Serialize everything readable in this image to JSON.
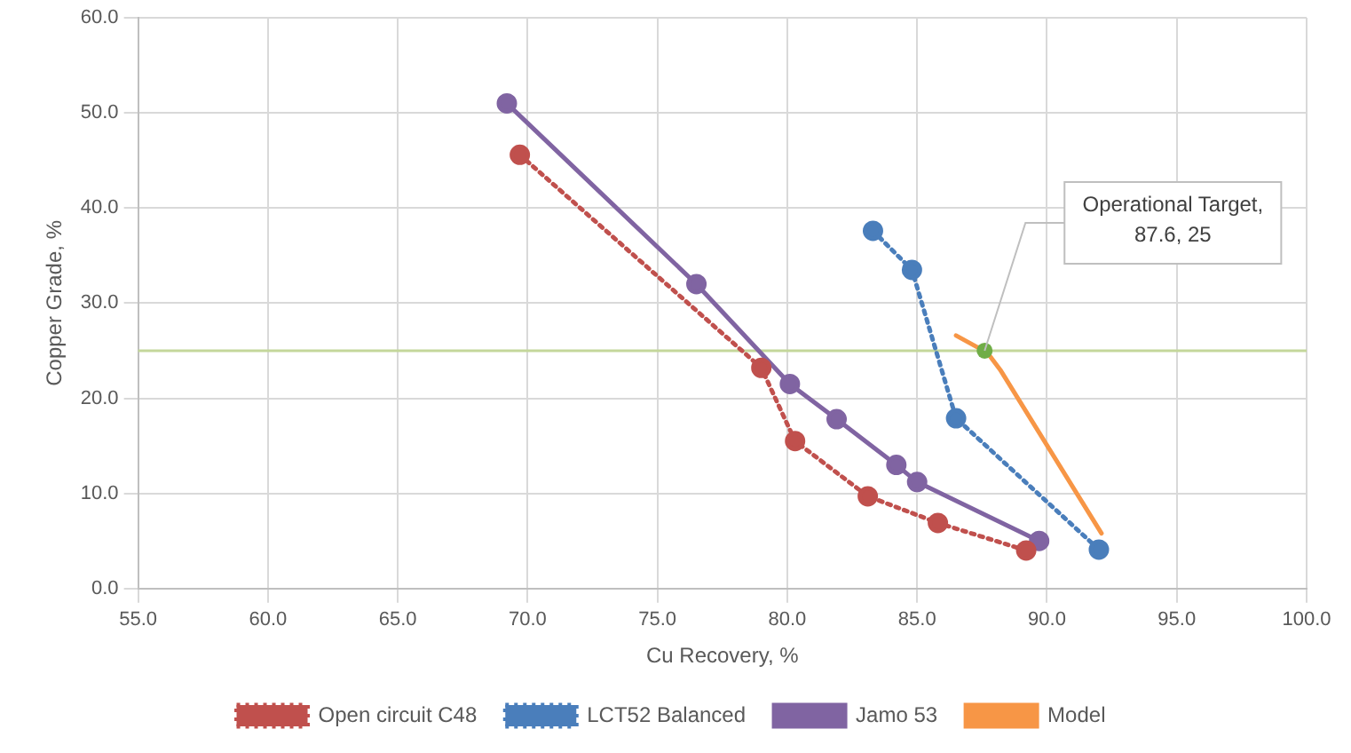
{
  "chart_data": {
    "type": "line",
    "xlabel": "Cu Recovery, %",
    "ylabel": "Copper Grade, %",
    "xlim": [
      55,
      100
    ],
    "xticks": [
      {
        "value": 55,
        "label": "55.0"
      },
      {
        "value": 60,
        "label": "60.0"
      },
      {
        "value": 65,
        "label": "65.0"
      },
      {
        "value": 70,
        "label": "70.0"
      },
      {
        "value": 75,
        "label": "75.0"
      },
      {
        "value": 80,
        "label": "80.0"
      },
      {
        "value": 85,
        "label": "85.0"
      },
      {
        "value": 90,
        "label": "90.0"
      },
      {
        "value": 95,
        "label": "95.0"
      },
      {
        "value": 100,
        "label": "100.0"
      }
    ],
    "ylim": [
      0,
      60
    ],
    "yticks": [
      {
        "value": 0,
        "label": "0.0"
      },
      {
        "value": 10,
        "label": "10.0"
      },
      {
        "value": 20,
        "label": "20.0"
      },
      {
        "value": 30,
        "label": "30.0"
      },
      {
        "value": 40,
        "label": "40.0"
      },
      {
        "value": 50,
        "label": "50.0"
      },
      {
        "value": 60,
        "label": "60.0"
      }
    ],
    "grid": true,
    "legend": "bottom",
    "series": [
      {
        "name": "Open circuit C48",
        "color": "#c0504d",
        "marker": "circle",
        "line_style": "dotted",
        "x": [
          69.7,
          79.0,
          80.3,
          83.1,
          85.8,
          89.2
        ],
        "values": [
          45.6,
          23.2,
          15.5,
          9.7,
          6.9,
          4.0
        ]
      },
      {
        "name": "LCT52 Balanced",
        "color": "#4a7ebb",
        "marker": "circle",
        "line_style": "dotted",
        "x": [
          83.3,
          84.8,
          86.5,
          92.0
        ],
        "values": [
          37.6,
          33.5,
          17.9,
          4.1
        ]
      },
      {
        "name": "Jamo 53",
        "color": "#8064a2",
        "marker": "circle",
        "line_style": "solid",
        "x": [
          69.2,
          76.5,
          80.1,
          81.9,
          84.2,
          85.0,
          89.7
        ],
        "values": [
          51.0,
          32.0,
          21.5,
          17.8,
          13.0,
          11.2,
          5.0
        ]
      },
      {
        "name": "Model",
        "color": "#f79646",
        "marker": "none",
        "line_style": "solid",
        "x": [
          86.5,
          87.7,
          88.2,
          92.1
        ],
        "values": [
          26.6,
          24.8,
          23.0,
          5.8
        ]
      },
      {
        "type": "scatter",
        "color": "#70ad47",
        "marker": "circle",
        "x": [
          87.6
        ],
        "values": [
          25
        ]
      }
    ],
    "ref_lines": [
      {
        "axis": "y",
        "value": 25,
        "color": "#c4d79b"
      }
    ],
    "annotations": [
      {
        "text": "Operational Target,\n87.6, 25",
        "x": 87.6,
        "y": 25
      }
    ]
  }
}
